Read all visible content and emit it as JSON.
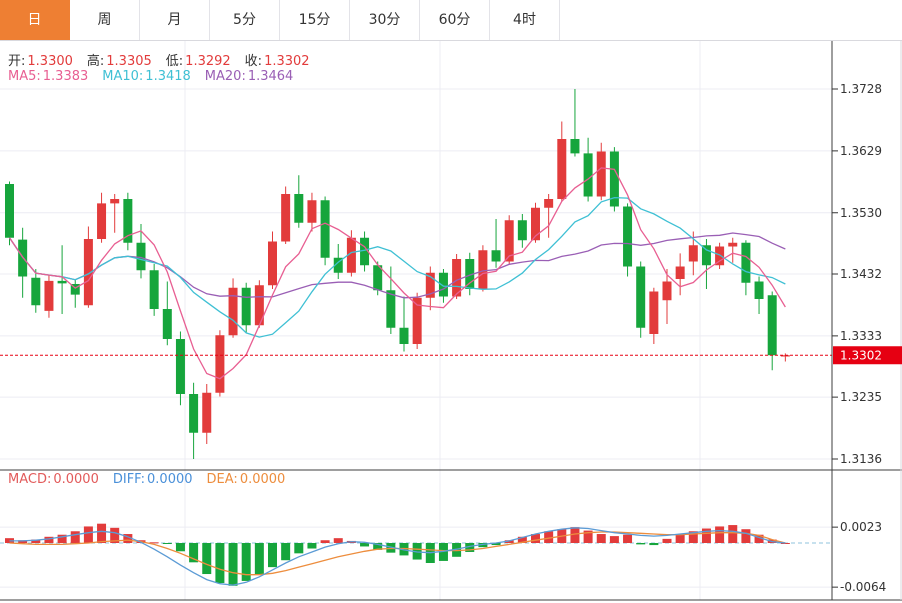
{
  "tabs": {
    "items": [
      {
        "label": "日",
        "active": true
      },
      {
        "label": "周",
        "active": false
      },
      {
        "label": "月",
        "active": false
      },
      {
        "label": "5分",
        "active": false
      },
      {
        "label": "15分",
        "active": false
      },
      {
        "label": "30分",
        "active": false
      },
      {
        "label": "60分",
        "active": false
      },
      {
        "label": "4时",
        "active": false
      }
    ],
    "active_bg": "#ee7f33"
  },
  "overlay": {
    "ohlc": [
      {
        "label": "开:",
        "value": "1.3300",
        "label_color": "#333333",
        "value_color": "#e23b3b"
      },
      {
        "label": "高:",
        "value": "1.3305",
        "label_color": "#333333",
        "value_color": "#e23b3b"
      },
      {
        "label": "低:",
        "value": "1.3292",
        "label_color": "#333333",
        "value_color": "#e23b3b"
      },
      {
        "label": "收:",
        "value": "1.3302",
        "label_color": "#333333",
        "value_color": "#e23b3b"
      }
    ],
    "ma": [
      {
        "label": "MA5:",
        "value": "1.3383",
        "label_color": "#e85f92",
        "value_color": "#e85f92"
      },
      {
        "label": "MA10:",
        "value": "1.3418",
        "label_color": "#3fc0d4",
        "value_color": "#3fc0d4"
      },
      {
        "label": "MA20:",
        "value": "1.3464",
        "label_color": "#9a5fb5",
        "value_color": "#9a5fb5"
      }
    ],
    "macd": [
      {
        "label": "MACD:",
        "value": "0.0000",
        "label_color": "#e25b5b",
        "value_color": "#e25b5b"
      },
      {
        "label": "DIFF:",
        "value": "0.0000",
        "label_color": "#4a90d9",
        "value_color": "#4a90d9"
      },
      {
        "label": "DEA:",
        "value": "0.0000",
        "label_color": "#ed8d3d",
        "value_color": "#ed8d3d"
      }
    ]
  },
  "axis": {
    "main_labels": [
      "1.3728",
      "1.3629",
      "1.3530",
      "1.3432",
      "1.3333",
      "1.3235",
      "1.3136"
    ],
    "macd_labels": [
      "0.0023",
      "-0.0064"
    ],
    "price_badge": "1.3302",
    "badge_color": "#e60012",
    "text_color": "#333333"
  },
  "chart_data": {
    "type": "candlestick+macd",
    "colors": {
      "up": "#e23b3b",
      "down": "#16a53c",
      "ma5": "#e85f92",
      "ma10": "#3fc0d4",
      "ma20": "#9a5fb5",
      "diff": "#5b9bd5",
      "dea": "#ed8d3d",
      "grid": "#ececf3",
      "frame": "#3c3c3c",
      "zero_line": "#8fc3dc",
      "price_line": "#e60012"
    },
    "main": {
      "yticks": [
        1.3728,
        1.3629,
        1.353,
        1.3432,
        1.3333,
        1.3235,
        1.3136
      ],
      "ylim": [
        1.312,
        1.3806
      ],
      "price_line": 1.3302,
      "ma_periods": [
        5,
        10,
        20
      ],
      "candles": [
        [
          1.3576,
          1.358,
          1.3478,
          1.349
        ],
        [
          1.3487,
          1.3506,
          1.3394,
          1.3428
        ],
        [
          1.3426,
          1.344,
          1.337,
          1.3382
        ],
        [
          1.3373,
          1.343,
          1.3362,
          1.3421
        ],
        [
          1.3421,
          1.3478,
          1.3368,
          1.3417
        ],
        [
          1.3416,
          1.3424,
          1.3378,
          1.3399
        ],
        [
          1.3382,
          1.3508,
          1.3378,
          1.3488
        ],
        [
          1.3488,
          1.3562,
          1.3482,
          1.3545
        ],
        [
          1.3545,
          1.356,
          1.3498,
          1.3552
        ],
        [
          1.3552,
          1.3562,
          1.347,
          1.3482
        ],
        [
          1.3482,
          1.3512,
          1.3425,
          1.3438
        ],
        [
          1.3438,
          1.3448,
          1.3365,
          1.3376
        ],
        [
          1.3376,
          1.342,
          1.3318,
          1.3328
        ],
        [
          1.3328,
          1.334,
          1.3222,
          1.324
        ],
        [
          1.324,
          1.3258,
          1.3136,
          1.3178
        ],
        [
          1.3178,
          1.3256,
          1.316,
          1.3242
        ],
        [
          1.3242,
          1.3342,
          1.3236,
          1.3334
        ],
        [
          1.3334,
          1.3425,
          1.333,
          1.341
        ],
        [
          1.341,
          1.3418,
          1.3338,
          1.335
        ],
        [
          1.335,
          1.3422,
          1.3346,
          1.3414
        ],
        [
          1.3414,
          1.35,
          1.3408,
          1.3484
        ],
        [
          1.3484,
          1.3572,
          1.348,
          1.356
        ],
        [
          1.356,
          1.359,
          1.3506,
          1.3514
        ],
        [
          1.3514,
          1.3562,
          1.35,
          1.355
        ],
        [
          1.355,
          1.3556,
          1.3446,
          1.3458
        ],
        [
          1.3458,
          1.348,
          1.3424,
          1.3434
        ],
        [
          1.3434,
          1.3502,
          1.3428,
          1.349
        ],
        [
          1.349,
          1.35,
          1.3436,
          1.3446
        ],
        [
          1.3446,
          1.3452,
          1.3398,
          1.3406
        ],
        [
          1.3406,
          1.3444,
          1.3336,
          1.3346
        ],
        [
          1.3346,
          1.3396,
          1.3308,
          1.332
        ],
        [
          1.332,
          1.3402,
          1.3312,
          1.3394
        ],
        [
          1.3394,
          1.3444,
          1.3374,
          1.3434
        ],
        [
          1.3434,
          1.344,
          1.3386,
          1.3396
        ],
        [
          1.3396,
          1.3464,
          1.3392,
          1.3456
        ],
        [
          1.3456,
          1.3466,
          1.3398,
          1.3408
        ],
        [
          1.3408,
          1.3478,
          1.3404,
          1.347
        ],
        [
          1.347,
          1.352,
          1.3442,
          1.3452
        ],
        [
          1.3452,
          1.3526,
          1.3448,
          1.3518
        ],
        [
          1.3518,
          1.3528,
          1.3474,
          1.3486
        ],
        [
          1.3486,
          1.3546,
          1.3482,
          1.3538
        ],
        [
          1.3538,
          1.356,
          1.349,
          1.3552
        ],
        [
          1.3552,
          1.3676,
          1.3548,
          1.3648
        ],
        [
          1.3648,
          1.3728,
          1.362,
          1.3625
        ],
        [
          1.3625,
          1.365,
          1.3548,
          1.3556
        ],
        [
          1.3556,
          1.3642,
          1.355,
          1.3628
        ],
        [
          1.3628,
          1.3635,
          1.3532,
          1.354
        ],
        [
          1.354,
          1.3545,
          1.3428,
          1.3444
        ],
        [
          1.3444,
          1.3452,
          1.333,
          1.3346
        ],
        [
          1.3336,
          1.341,
          1.332,
          1.3404
        ],
        [
          1.339,
          1.344,
          1.3352,
          1.342
        ],
        [
          1.3424,
          1.3465,
          1.3398,
          1.3444
        ],
        [
          1.3452,
          1.35,
          1.343,
          1.3478
        ],
        [
          1.3478,
          1.3488,
          1.3408,
          1.3446
        ],
        [
          1.3446,
          1.3482,
          1.344,
          1.3476
        ],
        [
          1.3476,
          1.349,
          1.345,
          1.3482
        ],
        [
          1.3482,
          1.3486,
          1.3398,
          1.3418
        ],
        [
          1.342,
          1.3428,
          1.3368,
          1.3392
        ],
        [
          1.3398,
          1.3404,
          1.3278,
          1.3302
        ],
        [
          1.33,
          1.3305,
          1.3292,
          1.3302
        ]
      ]
    },
    "macd": {
      "yticks": [
        0.0023,
        -0.0064
      ],
      "hist": [
        0.0007,
        0.0004,
        0.0005,
        0.0009,
        0.0012,
        0.0017,
        0.0024,
        0.0028,
        0.0022,
        0.0013,
        0.0004,
        0.0001,
        -0.0001,
        -0.0012,
        -0.0028,
        -0.0045,
        -0.0058,
        -0.0062,
        -0.0055,
        -0.0045,
        -0.0035,
        -0.0025,
        -0.0015,
        -0.0008,
        0.0004,
        0.0007,
        0.0003,
        -0.0005,
        -0.001,
        -0.0014,
        -0.0018,
        -0.0024,
        -0.0029,
        -0.0026,
        -0.002,
        -0.0013,
        -0.0006,
        -0.0003,
        0.0004,
        0.0009,
        0.0013,
        0.0017,
        0.002,
        0.0023,
        0.0018,
        0.0013,
        0.001,
        0.0012,
        -0.0002,
        -0.0003,
        0.0006,
        0.0012,
        0.0017,
        0.0021,
        0.0024,
        0.0026,
        0.002,
        0.0012,
        0.0005,
        0.0
      ],
      "diff": [
        0.0003,
        0.0003,
        0.0004,
        0.0006,
        0.0009,
        0.0012,
        0.0015,
        0.0017,
        0.0015,
        0.0009,
        0.0001,
        -0.0009,
        -0.002,
        -0.0032,
        -0.0043,
        -0.0053,
        -0.0059,
        -0.0061,
        -0.0057,
        -0.0049,
        -0.0039,
        -0.0029,
        -0.002,
        -0.0013,
        -0.0006,
        -0.0001,
        0.0002,
        0.0001,
        -0.0002,
        -0.0006,
        -0.001,
        -0.0013,
        -0.0014,
        -0.0012,
        -0.0009,
        -0.0005,
        -0.0002,
        0.0,
        0.0003,
        0.0008,
        0.0013,
        0.0017,
        0.002,
        0.0022,
        0.0021,
        0.0018,
        0.0015,
        0.0013,
        0.0011,
        0.001,
        0.0011,
        0.0013,
        0.0015,
        0.0017,
        0.0018,
        0.0017,
        0.0014,
        0.0008,
        0.0002,
        0.0
      ],
      "dea": [
        0.0,
        -0.0001,
        -0.0002,
        -0.0002,
        -0.0002,
        -0.0001,
        0.0,
        0.0002,
        0.0003,
        0.0004,
        0.0002,
        -0.0002,
        -0.0008,
        -0.0015,
        -0.0023,
        -0.0031,
        -0.0038,
        -0.0043,
        -0.0046,
        -0.0046,
        -0.0044,
        -0.004,
        -0.0035,
        -0.003,
        -0.0025,
        -0.002,
        -0.0016,
        -0.0012,
        -0.0009,
        -0.0008,
        -0.0008,
        -0.0009,
        -0.001,
        -0.0011,
        -0.0011,
        -0.001,
        -0.0008,
        -0.0005,
        -0.0002,
        0.0001,
        0.0004,
        0.0007,
        0.001,
        0.0013,
        0.0015,
        0.0016,
        0.0016,
        0.0015,
        0.0014,
        0.0013,
        0.0012,
        0.0012,
        0.0013,
        0.0014,
        0.0015,
        0.0015,
        0.0014,
        0.0011,
        0.0005,
        0.0
      ]
    }
  }
}
